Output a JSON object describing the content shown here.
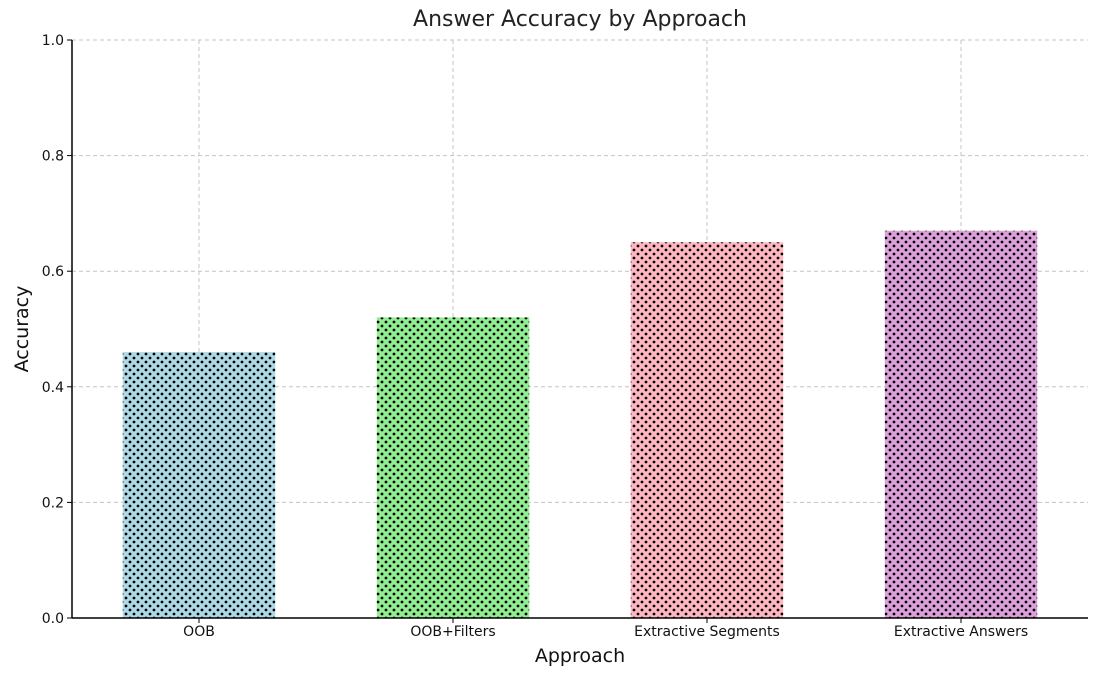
{
  "chart_data": {
    "type": "bar",
    "title": "Answer Accuracy by Approach",
    "xlabel": "Approach",
    "ylabel": "Accuracy",
    "ylim": [
      0,
      1.0
    ],
    "yticks": [
      "0.0",
      "0.2",
      "0.4",
      "0.6",
      "0.8",
      "1.0"
    ],
    "categories": [
      "OOB",
      "OOB+Filters",
      "Extractive Segments",
      "Extractive Answers"
    ],
    "values": [
      0.46,
      0.52,
      0.65,
      0.67
    ],
    "colors": [
      "#add8e6",
      "#90ee90",
      "#ffb6c1",
      "#dda0dd"
    ],
    "hatch": "dots",
    "grid": true
  }
}
